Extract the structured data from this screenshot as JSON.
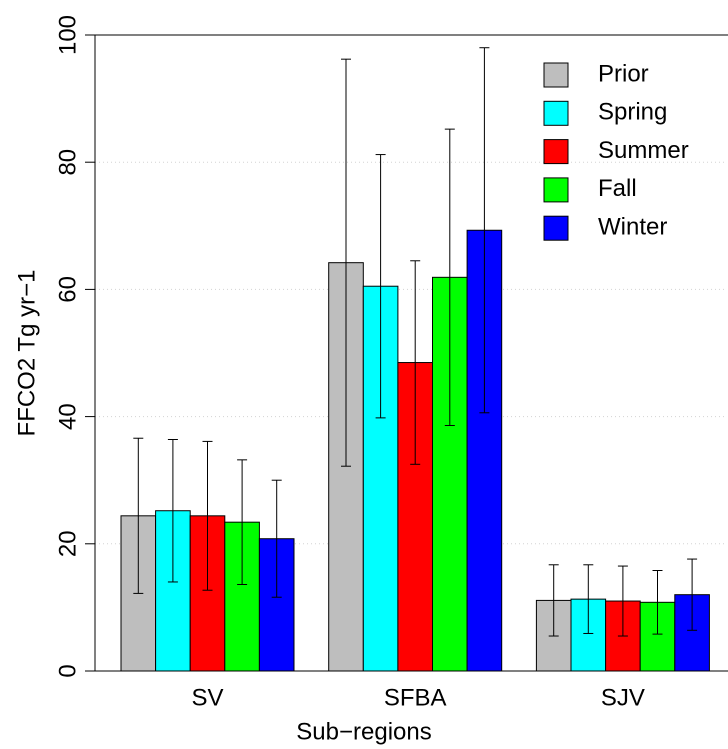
{
  "chart_data": {
    "type": "bar",
    "x_label": "Sub−regions",
    "y_label": "FFCO2 Tg yr−1",
    "categories": [
      "SV",
      "SFBA",
      "SJV"
    ],
    "series": [
      {
        "name": "Prior",
        "color": "#bebebe",
        "values": [
          24.4,
          64.2,
          11.1
        ],
        "errors": [
          12.2,
          32.0,
          5.6
        ]
      },
      {
        "name": "Spring",
        "color": "#00ffff",
        "values": [
          25.2,
          60.5,
          11.3
        ],
        "errors": [
          11.2,
          20.7,
          5.4
        ]
      },
      {
        "name": "Summer",
        "color": "#ff0000",
        "values": [
          24.4,
          48.5,
          11.0
        ],
        "errors": [
          11.7,
          16.0,
          5.5
        ]
      },
      {
        "name": "Fall",
        "color": "#00ff00",
        "values": [
          23.4,
          61.9,
          10.8
        ],
        "errors": [
          9.8,
          23.3,
          5.0
        ]
      },
      {
        "name": "Winter",
        "color": "#0000ff",
        "values": [
          20.8,
          69.3,
          12.0
        ],
        "errors": [
          9.2,
          28.7,
          5.6
        ]
      }
    ],
    "ylim": [
      0,
      100
    ],
    "yticks": [
      0,
      20,
      40,
      60,
      80,
      100
    ],
    "grid": true,
    "legend": "top-right"
  }
}
